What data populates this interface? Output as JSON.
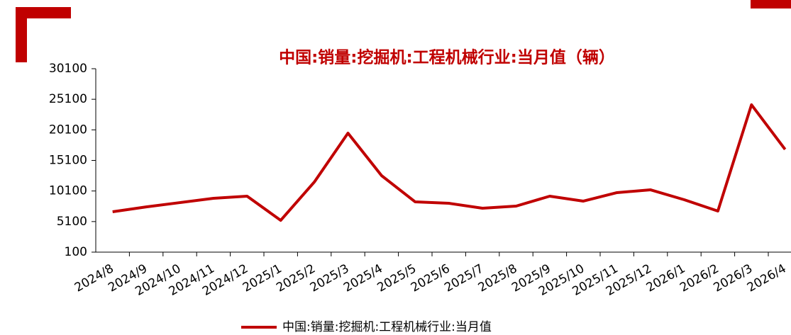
{
  "chart_data": {
    "type": "line",
    "title": "中国:销量:挖掘机:工程机械行业:当月值（辆）",
    "categories": [
      "2024/8",
      "2024/9",
      "2024/10",
      "2024/11",
      "2024/12",
      "2025/1",
      "2025/2",
      "2025/3",
      "2025/4",
      "2025/5",
      "2025/6",
      "2025/7",
      "2025/8",
      "2025/9",
      "2025/10",
      "2025/11",
      "2025/12",
      "2026/1",
      "2026/2",
      "2026/3",
      "2026/4"
    ],
    "series": [
      {
        "name": "中国:销量:挖掘机:工程机械行业:当月值",
        "color": "#c00000",
        "values": [
          6700,
          7500,
          8200,
          8900,
          9250,
          5300,
          11570,
          19560,
          12610,
          8320,
          8090,
          7280,
          7630,
          9250,
          8440,
          9830,
          10290,
          8670,
          6820,
          24200,
          16900
        ]
      }
    ],
    "ylim": [
      100,
      30100
    ],
    "yticks": [
      100,
      5100,
      10100,
      15100,
      20100,
      25100,
      30100
    ]
  }
}
